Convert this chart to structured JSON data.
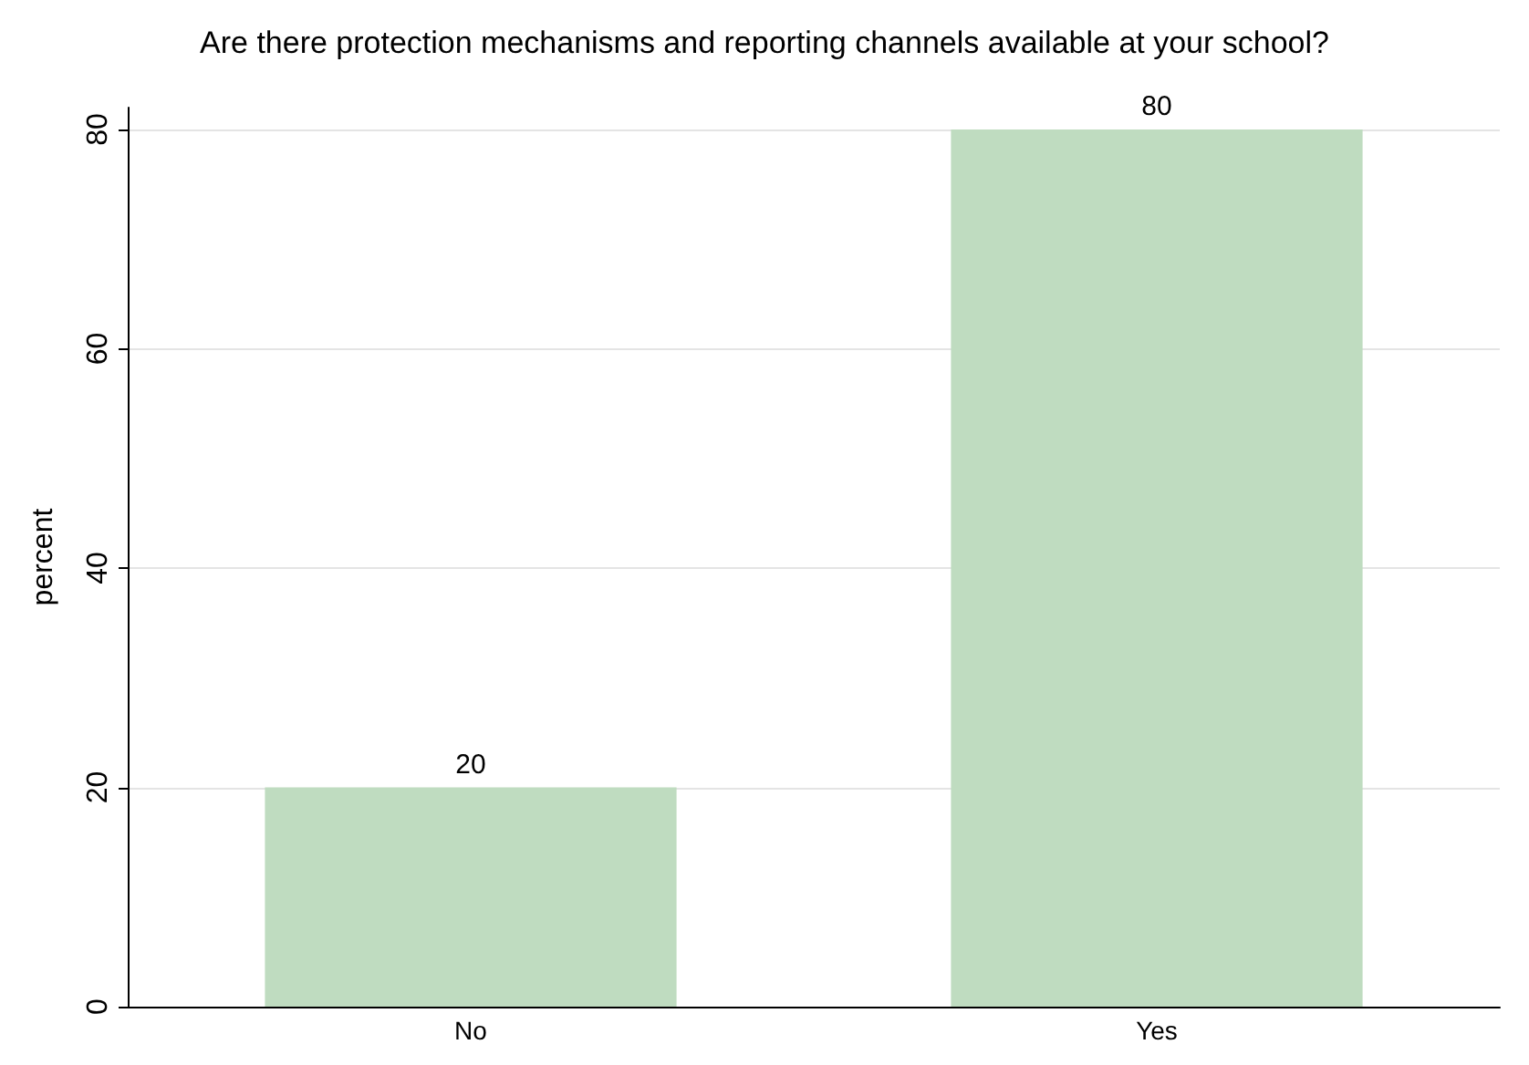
{
  "chart_data": {
    "type": "bar",
    "title": "Are there protection mechanisms and reporting channels available at your school?",
    "ylabel": "percent",
    "categories": [
      "No",
      "Yes"
    ],
    "values": [
      20,
      80
    ],
    "color": "#bfdcc0",
    "ylim": [
      0,
      82
    ],
    "yticks": [
      0,
      20,
      40,
      60,
      80
    ],
    "grid": "y",
    "data_labels": true
  }
}
